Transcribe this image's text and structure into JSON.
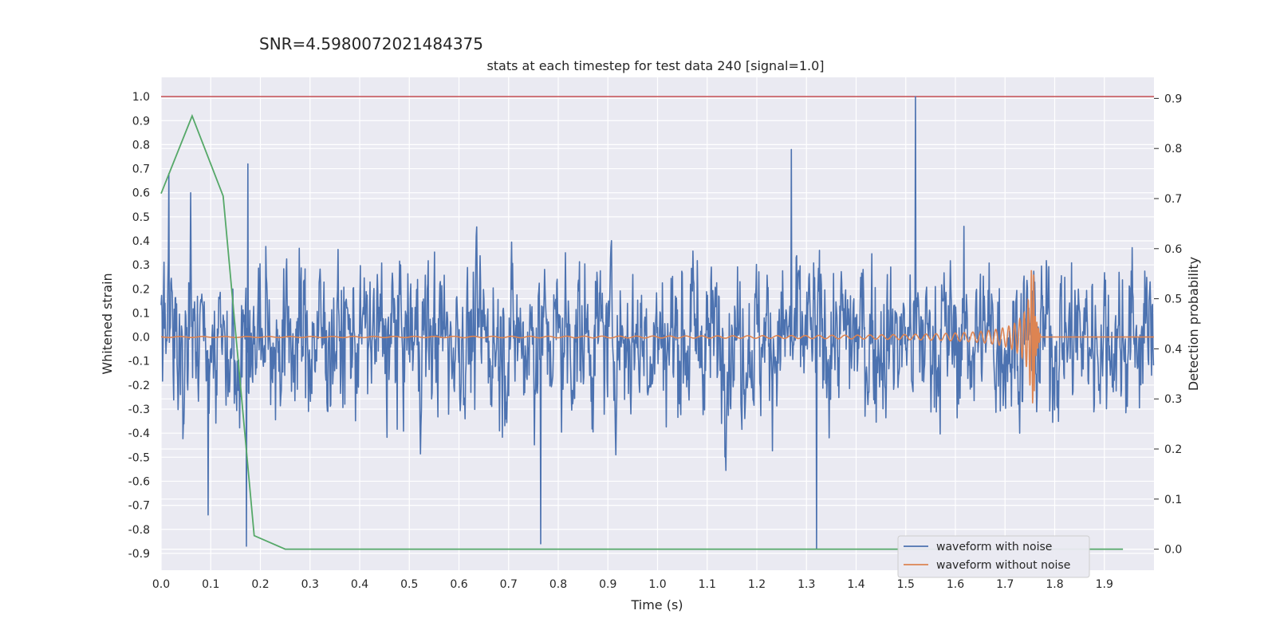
{
  "chart_data": {
    "type": "line",
    "suptitle": "SNR=4.5980072021484375",
    "title": "stats at each timestep for test data 240 [signal=1.0]",
    "xlabel": "Time (s)",
    "ylabel": "Whitened strain",
    "y2label": "Detection probability",
    "xlim": [
      0.0,
      2.0
    ],
    "ylim": [
      -0.97,
      1.08
    ],
    "y2lim": [
      -0.042,
      0.942
    ],
    "xticks": [
      "0.0",
      "0.1",
      "0.2",
      "0.3",
      "0.4",
      "0.5",
      "0.6",
      "0.7",
      "0.8",
      "0.9",
      "1.0",
      "1.1",
      "1.2",
      "1.3",
      "1.4",
      "1.5",
      "1.6",
      "1.7",
      "1.8",
      "1.9"
    ],
    "yticks": [
      "1.0",
      "0.9",
      "0.8",
      "0.7",
      "0.6",
      "0.5",
      "0.4",
      "0.3",
      "0.2",
      "0.1",
      "0.0",
      "-0.1",
      "-0.2",
      "-0.3",
      "-0.4",
      "-0.5",
      "-0.6",
      "-0.7",
      "-0.8",
      "-0.9"
    ],
    "y2ticks": [
      "0.9",
      "0.8",
      "0.7",
      "0.6",
      "0.5",
      "0.4",
      "0.3",
      "0.2",
      "0.1",
      "0.0"
    ],
    "grid": true,
    "legend_position": "lower-right",
    "threshold": {
      "value": 1.0,
      "color": "#c44e52"
    },
    "series": [
      {
        "name": "waveform with noise",
        "color": "#4c72b0",
        "axis": "left",
        "sample_count": 2048,
        "peaks": [
          [
            0.016,
            0.68
          ],
          [
            0.06,
            0.6
          ],
          [
            0.095,
            -0.74
          ],
          [
            0.175,
            0.72
          ],
          [
            0.172,
            -0.87
          ],
          [
            0.765,
            -0.86
          ],
          [
            1.27,
            0.78
          ],
          [
            1.32,
            -0.88
          ],
          [
            1.52,
            1.0
          ]
        ]
      },
      {
        "name": "waveform without noise",
        "color": "#dd8452",
        "axis": "left",
        "chirp_end": 1.76,
        "chirp_peak": [
          1.745,
          0.28
        ]
      },
      {
        "name": "detection probability",
        "color": "#55a868",
        "axis": "right",
        "x": [
          0.0,
          0.0625,
          0.125,
          0.1875,
          0.25,
          0.3125,
          0.375,
          0.4375,
          0.5,
          0.5625,
          0.625,
          0.6875,
          0.75,
          0.8125,
          0.875,
          0.9375,
          1.0,
          1.0625,
          1.125,
          1.1875,
          1.25,
          1.3125,
          1.375,
          1.4375,
          1.5,
          1.5625,
          1.625,
          1.6875,
          1.75,
          1.8125,
          1.875,
          1.9375
        ],
        "values": [
          0.71,
          0.865,
          0.705,
          0.027,
          0.0,
          0.0,
          0.0,
          0.0,
          0.0,
          0.0,
          0.0,
          0.0,
          0.0,
          0.0,
          0.0,
          0.0,
          0.0,
          0.0,
          0.0,
          0.0,
          0.0,
          0.0,
          0.0,
          0.0,
          0.0,
          0.0,
          0.0,
          0.0,
          0.0,
          0.0,
          0.0,
          0.0
        ]
      }
    ]
  }
}
